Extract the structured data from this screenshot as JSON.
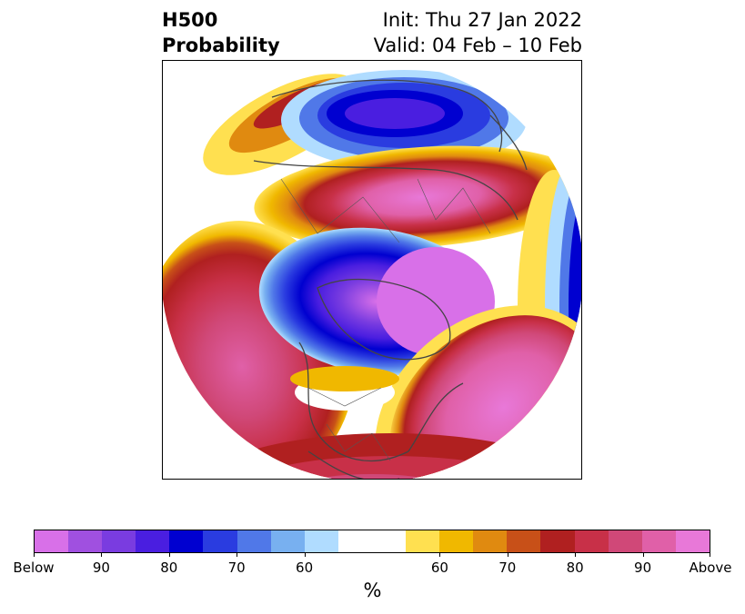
{
  "title": {
    "left_line1": "H500",
    "left_line2": "Probability",
    "right_line1": "Init: Thu 27 Jan 2022",
    "right_line2": "Valid: 04 Feb – 10 Feb"
  },
  "colorbar": {
    "colors": [
      "#d870e8",
      "#a050e0",
      "#7a3ce0",
      "#4a1ee0",
      "#0000d0",
      "#2a3ce0",
      "#5078e8",
      "#78b0f0",
      "#b0dcff",
      "#ffffff",
      "#ffffff",
      "#ffe050",
      "#f0b800",
      "#e08a10",
      "#c85018",
      "#b02020",
      "#c83048",
      "#d04878",
      "#e060a8",
      "#e878d8"
    ],
    "tick_labels": [
      "Below",
      "90",
      "80",
      "70",
      "60",
      "60",
      "70",
      "80",
      "90",
      "Above"
    ],
    "unit_label": "%"
  },
  "map": {
    "projection": "polar stereographic, Northern Hemisphere",
    "variable": "500 hPa height anomaly probability"
  }
}
